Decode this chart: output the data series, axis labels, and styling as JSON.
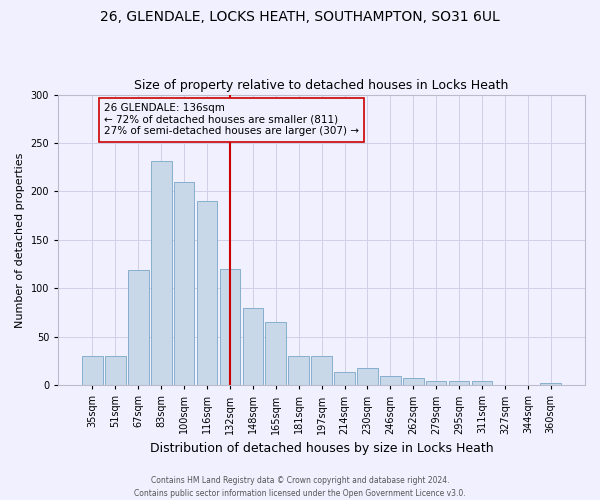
{
  "title_line1": "26, GLENDALE, LOCKS HEATH, SOUTHAMPTON, SO31 6UL",
  "title_line2": "Size of property relative to detached houses in Locks Heath",
  "xlabel": "Distribution of detached houses by size in Locks Heath",
  "ylabel": "Number of detached properties",
  "footer_line1": "Contains HM Land Registry data © Crown copyright and database right 2024.",
  "footer_line2": "Contains public sector information licensed under the Open Government Licence v3.0.",
  "categories": [
    "35sqm",
    "51sqm",
    "67sqm",
    "83sqm",
    "100sqm",
    "116sqm",
    "132sqm",
    "148sqm",
    "165sqm",
    "181sqm",
    "197sqm",
    "214sqm",
    "230sqm",
    "246sqm",
    "262sqm",
    "279sqm",
    "295sqm",
    "311sqm",
    "327sqm",
    "344sqm",
    "360sqm"
  ],
  "values": [
    30,
    30,
    119,
    231,
    210,
    190,
    120,
    80,
    65,
    30,
    30,
    14,
    18,
    10,
    7,
    4,
    4,
    4,
    0,
    0,
    2
  ],
  "bar_color": "#c8d8e8",
  "bar_edge_color": "#7aa8c8",
  "ref_line_index": 6,
  "ref_line_color": "#cc0000",
  "annotation_line1": "26 GLENDALE: 136sqm",
  "annotation_line2": "← 72% of detached houses are smaller (811)",
  "annotation_line3": "27% of semi-detached houses are larger (307) →",
  "annotation_box_edge": "#cc0000",
  "annotation_fontsize": 7.5,
  "ylim": [
    0,
    300
  ],
  "yticks": [
    0,
    50,
    100,
    150,
    200,
    250,
    300
  ],
  "bg_color": "#f0f0ff",
  "grid_color": "#d0d0e8",
  "title_fontsize": 10,
  "subtitle_fontsize": 9,
  "ylabel_fontsize": 8,
  "xlabel_fontsize": 9,
  "tick_fontsize": 7
}
